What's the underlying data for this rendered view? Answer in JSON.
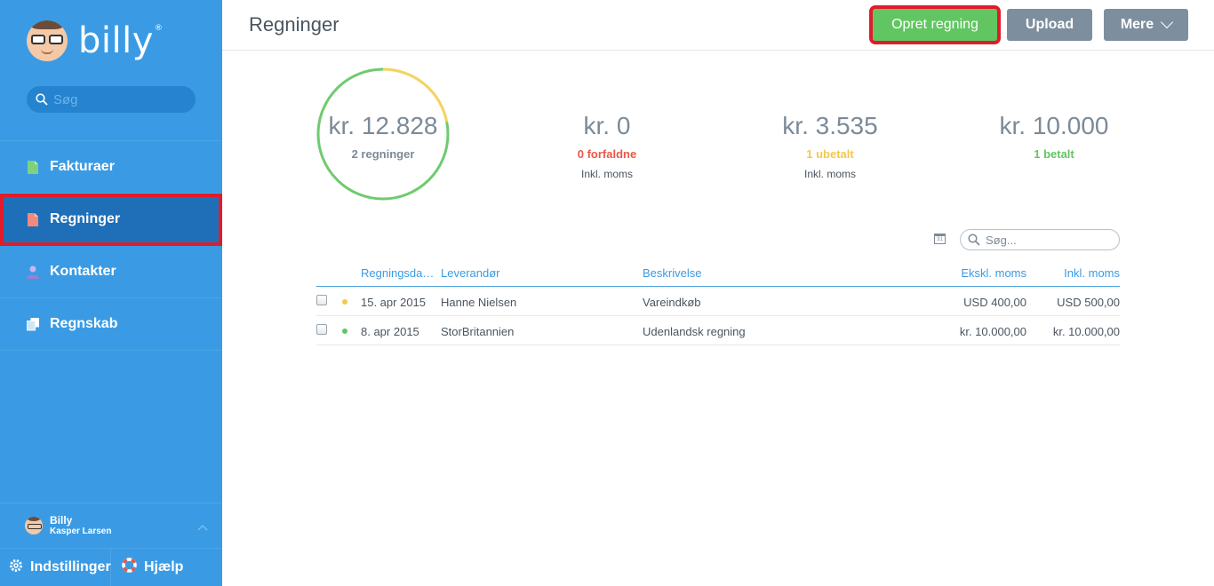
{
  "app": {
    "name": "billy",
    "registered_mark": "®"
  },
  "search": {
    "placeholder": "Søg"
  },
  "nav": {
    "items": [
      {
        "label": "Fakturaer",
        "icon": "invoice-icon",
        "color": "#7ed27e"
      },
      {
        "label": "Regninger",
        "icon": "bill-icon",
        "color": "#f08a7e",
        "active": true
      },
      {
        "label": "Kontakter",
        "icon": "contact-icon",
        "color": "#9b7fd6"
      },
      {
        "label": "Regnskab",
        "icon": "accounting-icon",
        "color": "#ffffff"
      }
    ]
  },
  "user": {
    "org": "Billy",
    "name": "Kasper Larsen"
  },
  "bottom": {
    "settings_label": "Indstillinger",
    "help_label": "Hjælp"
  },
  "header": {
    "title": "Regninger",
    "create_label": "Opret regning",
    "upload_label": "Upload",
    "more_label": "Mere"
  },
  "summary": {
    "total": {
      "amount": "kr. 12.828",
      "label": "2 regninger"
    },
    "due": {
      "amount": "kr. 0",
      "label": "0 forfaldne",
      "note": "Inkl. moms"
    },
    "unpaid": {
      "amount": "kr. 3.535",
      "label": "1 ubetalt",
      "note": "Inkl. moms"
    },
    "paid": {
      "amount": "kr. 10.000",
      "label": "1 betalt"
    },
    "ring": {
      "paid_fraction": 0.78,
      "unpaid_fraction": 0.22,
      "paid_color": "#6fcb6f",
      "unpaid_color": "#f4d35e"
    }
  },
  "table": {
    "calendar_icon_text": "31",
    "search_placeholder": "Søg...",
    "columns": [
      "Regningsda…",
      "Leverandør",
      "Beskrivelse",
      "Ekskl. moms",
      "Inkl. moms"
    ],
    "rows": [
      {
        "status_color": "#f2c94c",
        "date": "15. apr 2015",
        "vendor": "Hanne Nielsen",
        "description": "Vareindkøb",
        "excl": "USD 400,00",
        "incl": "USD 500,00"
      },
      {
        "status_color": "#61c661",
        "date": "8. apr 2015",
        "vendor": "StorBritannien",
        "description": "Udenlandsk regning",
        "excl": "kr. 10.000,00",
        "incl": "kr. 10.000,00"
      }
    ]
  },
  "colors": {
    "sidebar": "#3a9be4",
    "accent": "#3a9be4",
    "create_button": "#61c661",
    "secondary_button": "#7d8f9e",
    "highlight": "#e01c2a"
  }
}
